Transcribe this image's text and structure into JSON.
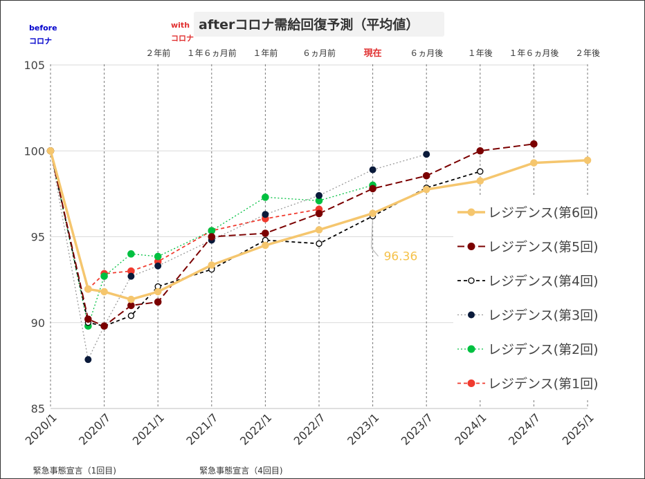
{
  "chart_data": {
    "type": "line",
    "title": "afterコロナ需給回復予測（平均値）",
    "badges": {
      "before_line1": "before",
      "before_line2": "コロナ",
      "with_line1": "with",
      "with_line2": "コロナ"
    },
    "colors": {
      "before": "#0000cc",
      "with": "#e03030",
      "current": "#e03030"
    },
    "x_ticks": [
      "2020/1",
      "2020/7",
      "2021/1",
      "2021/7",
      "2022/1",
      "2022/7",
      "2023/1",
      "2023/7",
      "2024/1",
      "2024/7",
      "2025/1"
    ],
    "y_ticks": [
      85,
      90,
      95,
      100,
      105
    ],
    "ylim": [
      85,
      105
    ],
    "xlim": [
      0,
      10
    ],
    "period_labels": [
      {
        "x": 2,
        "text": "２年前"
      },
      {
        "x": 3,
        "text": "１年６ヵ月前"
      },
      {
        "x": 4,
        "text": "１年前"
      },
      {
        "x": 5,
        "text": "６ヵ月前"
      },
      {
        "x": 6,
        "text": "現在",
        "highlight": true
      },
      {
        "x": 7,
        "text": "６ヵ月後"
      },
      {
        "x": 8,
        "text": "１年後"
      },
      {
        "x": 9,
        "text": "１年６ヵ月後"
      },
      {
        "x": 10,
        "text": "２年後"
      }
    ],
    "footnotes": [
      {
        "x": 0.5,
        "text": "緊急事態宣言（1回目)"
      },
      {
        "x": 3.6,
        "text": "緊急事態宣言（4回目)"
      }
    ],
    "annotation": {
      "text": "96.36",
      "x": 6,
      "y": 96.36,
      "color": "#f5c24b"
    },
    "series": [
      {
        "name": "レジデンス(第6回)",
        "color": "#f5c66e",
        "style": "solid-thick",
        "marker": "filled",
        "points": [
          [
            0,
            100
          ],
          [
            0.7,
            91.95
          ],
          [
            1.0,
            91.8
          ],
          [
            1.5,
            91.35
          ],
          [
            2.0,
            91.8
          ],
          [
            3.0,
            93.35
          ],
          [
            4.0,
            94.5
          ],
          [
            5.0,
            95.4
          ],
          [
            6.0,
            96.36
          ],
          [
            7.0,
            97.75
          ],
          [
            8.0,
            98.25
          ],
          [
            9.0,
            99.3
          ],
          [
            10.0,
            99.45
          ]
        ]
      },
      {
        "name": "レジデンス(第5回)",
        "color": "#7b0000",
        "style": "longdash",
        "marker": "filled",
        "points": [
          [
            0,
            100
          ],
          [
            0.7,
            90.2
          ],
          [
            1.0,
            89.8
          ],
          [
            1.5,
            91.0
          ],
          [
            2.0,
            91.2
          ],
          [
            3.0,
            95.0
          ],
          [
            4.0,
            95.2
          ],
          [
            5.0,
            96.35
          ],
          [
            6.0,
            97.8
          ],
          [
            7.0,
            98.55
          ],
          [
            8.0,
            100.0
          ],
          [
            9.0,
            100.4
          ]
        ]
      },
      {
        "name": "レジデンス(第4回)",
        "color": "#000000",
        "style": "dash",
        "marker": "hollow",
        "points": [
          [
            0,
            100
          ],
          [
            0.7,
            90.0
          ],
          [
            1.0,
            89.8
          ],
          [
            1.5,
            90.4
          ],
          [
            2.0,
            92.1
          ],
          [
            3.0,
            93.1
          ],
          [
            4.0,
            94.8
          ],
          [
            5.0,
            94.6
          ],
          [
            6.0,
            96.2
          ],
          [
            7.0,
            97.85
          ],
          [
            8.0,
            98.8
          ]
        ]
      },
      {
        "name": "レジデンス(第3回)",
        "color": "#999999",
        "style": "dot",
        "marker": "navy",
        "points": [
          [
            0,
            100
          ],
          [
            0.7,
            87.85
          ],
          [
            1.0,
            89.8
          ],
          [
            1.5,
            92.7
          ],
          [
            2.0,
            93.3
          ],
          [
            3.0,
            94.8
          ],
          [
            4.0,
            96.3
          ],
          [
            5.0,
            97.4
          ],
          [
            6.0,
            98.9
          ],
          [
            7.0,
            99.8
          ]
        ]
      },
      {
        "name": "レジデンス(第2回)",
        "color": "#00c040",
        "style": "dot",
        "marker": "filled",
        "points": [
          [
            0,
            100
          ],
          [
            0.7,
            89.8
          ],
          [
            1.0,
            92.7
          ],
          [
            1.5,
            94.0
          ],
          [
            2.0,
            93.85
          ],
          [
            3.0,
            95.35
          ],
          [
            4.0,
            97.3
          ],
          [
            5.0,
            97.1
          ],
          [
            6.0,
            98.0
          ]
        ]
      },
      {
        "name": "レジデンス(第1回)",
        "color": "#f03a2e",
        "style": "dash",
        "marker": "filled",
        "points": [
          [
            0,
            100
          ],
          [
            0.7,
            91.95
          ],
          [
            1.0,
            92.85
          ],
          [
            1.5,
            93.0
          ],
          [
            2.0,
            93.55
          ],
          [
            3.0,
            95.35
          ],
          [
            4.0,
            96.05
          ],
          [
            5.0,
            96.6
          ]
        ]
      }
    ]
  }
}
